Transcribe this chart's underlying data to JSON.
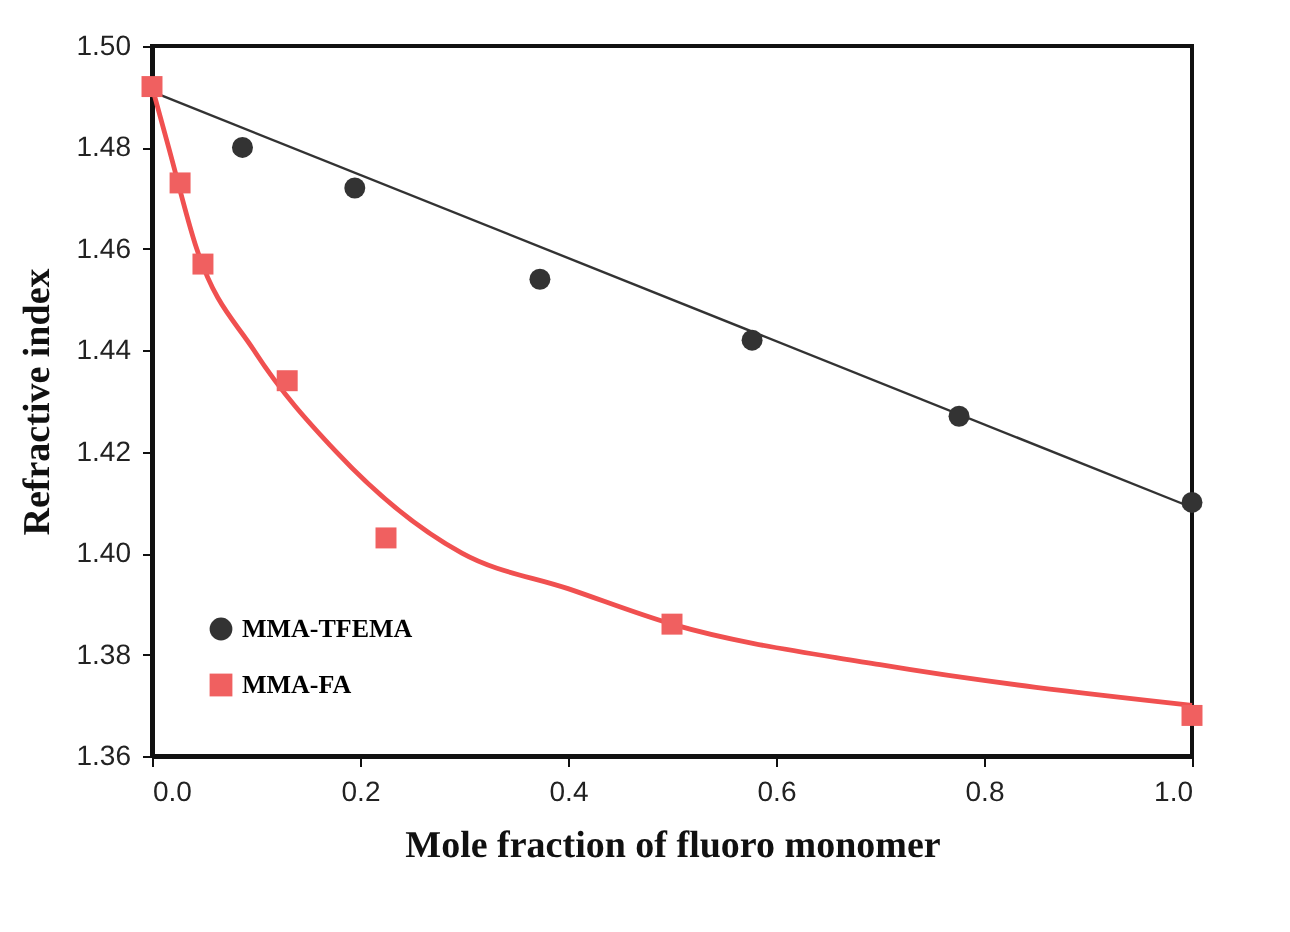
{
  "chart_data": {
    "type": "scatter",
    "xlabel": "Mole fraction of fluoro monomer",
    "ylabel": "Refractive index",
    "xlim": [
      0,
      1
    ],
    "xticks": [
      {
        "value": 0,
        "label": "0.0"
      },
      0.2,
      0.4,
      0.6,
      0.8,
      {
        "value": 1,
        "label": "1.0"
      }
    ],
    "ylim": [
      1.36,
      1.5
    ],
    "yticks": [
      1.36,
      1.38,
      {
        "value": 1.4,
        "label": "1.40"
      },
      1.42,
      1.44,
      1.46,
      1.48,
      {
        "value": 1.5,
        "label": "1.50"
      }
    ],
    "legend": "bottom left",
    "grid": false,
    "series": [
      {
        "type": "line",
        "color": "#333333",
        "x": [
          0,
          1
        ],
        "values": [
          1.491,
          1.409
        ]
      },
      {
        "type": "line",
        "color": "#f05050",
        "x": [
          0,
          0.016,
          0.043,
          0.098,
          0.177,
          0.298,
          0.4,
          0.5,
          0.7,
          1.0
        ],
        "values": [
          1.492,
          1.48,
          1.46,
          1.44,
          1.42,
          1.4,
          1.393,
          1.386,
          1.378,
          1.37
        ]
      },
      {
        "name": "MMA-TFEMA",
        "marker": "circle",
        "color": "#333333",
        "x": [
          0.087,
          0.195,
          0.373,
          0.577,
          0.776,
          1.0
        ],
        "values": [
          1.48,
          1.472,
          1.454,
          1.442,
          1.427,
          1.41
        ]
      },
      {
        "name": "MMA-FA",
        "marker": "square",
        "color": "#f06060",
        "x": [
          0,
          0.027,
          0.049,
          0.13,
          0.225,
          0.5,
          1.0
        ],
        "values": [
          1.492,
          1.473,
          1.457,
          1.434,
          1.403,
          1.386,
          1.368
        ]
      }
    ]
  }
}
